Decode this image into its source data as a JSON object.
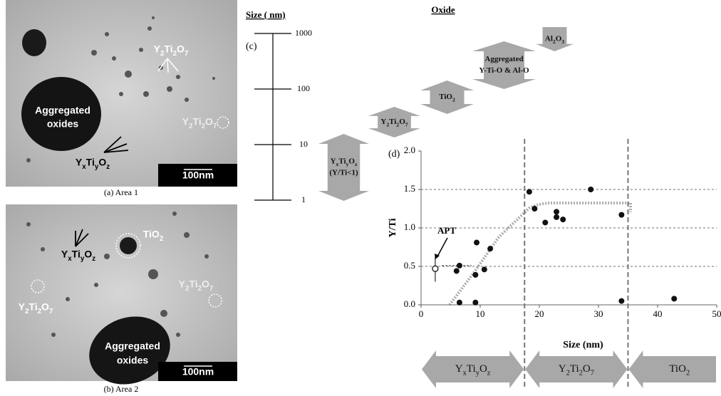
{
  "panel_a": {
    "caption": "(a) Area 1",
    "scale_bar": "100nm",
    "labels": [
      "Y2Ti2O7",
      "Aggregated",
      "oxides",
      "Y2Ti2O7",
      "YxTiyOz"
    ]
  },
  "panel_b": {
    "caption": "(b) Area 2",
    "scale_bar": "100nm",
    "labels": [
      "TiO2",
      "YxTiyOz",
      "Y2Ti2O7",
      "Y2Ti2O7",
      "Aggregated",
      "oxides"
    ]
  },
  "panel_c": {
    "panel_label": "(c)",
    "axis_title": "Size ( nm)",
    "ticks": [
      1,
      10,
      100,
      1000
    ],
    "oxide_title": "Oxide",
    "oxides": [
      [
        "Al2O3"
      ],
      [
        "Aggregated",
        "Y-Ti-O & Al-O"
      ],
      [
        "TiO2"
      ],
      [
        "Y2Ti2O7"
      ],
      [
        "YxTiyOz",
        "(Y/Ti<1)"
      ]
    ]
  },
  "chart_data": {
    "type": "scatter",
    "panel_label": "(d)",
    "x_label": "Size (nm)",
    "y_label": "Y/Ti",
    "x": [
      6.0,
      6.5,
      6.5,
      9.2,
      9.2,
      9.4,
      10.7,
      11.7,
      18.3,
      19.2,
      21.0,
      22.9,
      22.9,
      24.0,
      28.7,
      33.9,
      33.9,
      42.8
    ],
    "values": [
      0.44,
      0.51,
      0.03,
      0.03,
      0.39,
      0.81,
      0.46,
      0.73,
      1.47,
      1.25,
      1.07,
      1.21,
      1.14,
      1.11,
      1.5,
      1.17,
      0.05,
      0.08
    ],
    "color": "#111111",
    "apt": {
      "label": "APT",
      "x": 2.4,
      "value": 0.47,
      "error": 0.17
    },
    "xlim": [
      0,
      50
    ],
    "ylim": [
      0,
      2
    ],
    "xticks": [
      0,
      10,
      20,
      30,
      40,
      50
    ],
    "yticks": [
      {
        "value": 0,
        "label": "0.0"
      },
      {
        "value": 0.5,
        "label": "0.5"
      },
      {
        "value": 1,
        "label": "1.0"
      },
      {
        "value": 1.5,
        "label": "1.5"
      },
      {
        "value": 2,
        "label": "2.0"
      }
    ],
    "grid": true,
    "boundaries": [
      17.5,
      35
    ],
    "regions": [
      "YxTiyOz",
      "Y2Ti2O7",
      "TiO2"
    ]
  }
}
